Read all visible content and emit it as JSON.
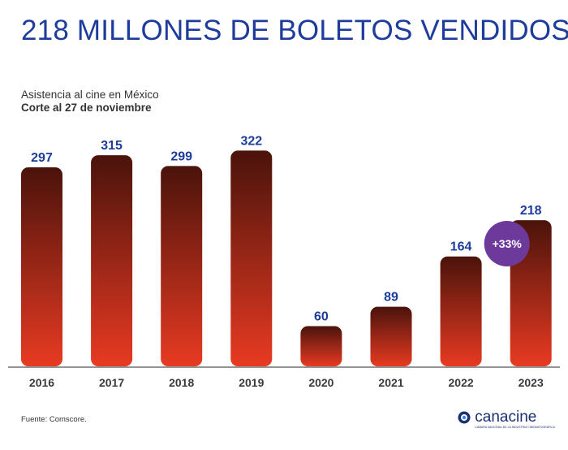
{
  "header": {
    "title": "218 MILLONES DE BOLETOS VENDIDOS",
    "subtitle": "Asistencia al cine en México",
    "subtitle_bold": "Corte al 27 de noviembre"
  },
  "chart_data": {
    "type": "bar",
    "title": "218 MILLONES DE BOLETOS VENDIDOS",
    "xlabel": "",
    "ylabel": "",
    "categories": [
      "2016",
      "2017",
      "2018",
      "2019",
      "2020",
      "2021",
      "2022",
      "2023"
    ],
    "values": [
      297,
      315,
      299,
      322,
      60,
      89,
      164,
      218
    ],
    "ylim": [
      0,
      340
    ],
    "grid": false,
    "annotations": [
      {
        "category": "2023",
        "text": "+33%",
        "color": "#6d3a9c"
      }
    ],
    "colors": {
      "bar_top": "#4a130b",
      "bar_bottom": "#e83a22",
      "label": "#1d3c9c",
      "axis": "#555555"
    }
  },
  "footer": {
    "source": "Fuente: Comscore.",
    "logo_name": "canacine",
    "logo_tagline": "CÁMARA NACIONAL DE LA INDUSTRIA CINEMATOGRÁFICA"
  }
}
